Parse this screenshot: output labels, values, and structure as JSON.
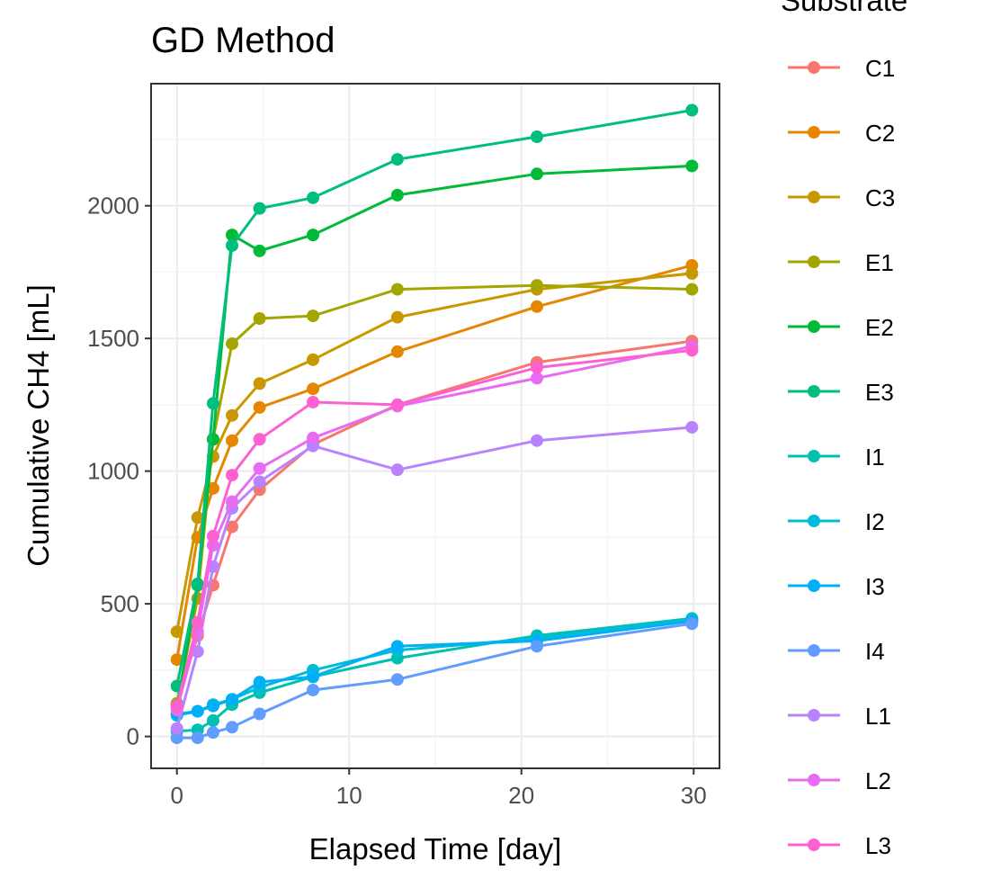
{
  "colors": {
    "panel_border": "#333333",
    "grid_major": "#ebebeb",
    "grid_minor": "#f5f5f5",
    "tick_text": "#4d4d4d"
  },
  "chart_data": {
    "type": "line",
    "title": "GD Method",
    "xlabel": "Elapsed Time [day]",
    "ylabel": "Cumulative CH4 [mL]",
    "xlim": [
      -1.5,
      31.5
    ],
    "ylim": [
      -120,
      2460
    ],
    "x_ticks": [
      0,
      10,
      20,
      30
    ],
    "y_ticks": [
      0,
      500,
      1000,
      1500,
      2000
    ],
    "grid": true,
    "markers": true,
    "legend": {
      "title": "Substrate",
      "position": "right"
    },
    "x": [
      0,
      1.2,
      2.1,
      3.2,
      4.8,
      7.9,
      12.8,
      20.9,
      29.9
    ],
    "series": [
      {
        "name": "C1",
        "color": "#F8766D",
        "values": [
          120,
          380,
          570,
          790,
          930,
          1100,
          1250,
          1410,
          1490
        ]
      },
      {
        "name": "C2",
        "color": "#E58700",
        "values": [
          290,
          750,
          935,
          1115,
          1240,
          1310,
          1450,
          1620,
          1775
        ]
      },
      {
        "name": "C3",
        "color": "#C99800",
        "values": [
          395,
          825,
          1055,
          1210,
          1330,
          1420,
          1580,
          1685,
          1745
        ]
      },
      {
        "name": "E1",
        "color": "#A3A500",
        "values": [
          125,
          520,
          1120,
          1480,
          1575,
          1585,
          1685,
          1700,
          1685
        ]
      },
      {
        "name": "E2",
        "color": "#00BA38",
        "values": [
          110,
          570,
          1120,
          1890,
          1830,
          1890,
          2040,
          2120,
          2150
        ]
      },
      {
        "name": "E3",
        "color": "#00BF7D",
        "values": [
          190,
          575,
          1255,
          1850,
          1990,
          2030,
          2175,
          2260,
          2360
        ]
      },
      {
        "name": "I1",
        "color": "#00C0AF",
        "values": [
          20,
          25,
          60,
          120,
          165,
          225,
          295,
          380,
          445
        ]
      },
      {
        "name": "I2",
        "color": "#00BCD8",
        "values": [
          85,
          95,
          120,
          140,
          185,
          250,
          325,
          370,
          440
        ]
      },
      {
        "name": "I3",
        "color": "#00B0F6",
        "values": [
          80,
          95,
          115,
          140,
          205,
          225,
          340,
          360,
          435
        ]
      },
      {
        "name": "I4",
        "color": "#619CFF",
        "values": [
          -5,
          -5,
          15,
          35,
          85,
          175,
          215,
          340,
          425
        ]
      },
      {
        "name": "L1",
        "color": "#B983FF",
        "values": [
          30,
          320,
          640,
          860,
          960,
          1095,
          1005,
          1115,
          1165
        ]
      },
      {
        "name": "L2",
        "color": "#E76BF3",
        "values": [
          100,
          395,
          720,
          885,
          1010,
          1125,
          1245,
          1350,
          1470
        ]
      },
      {
        "name": "L3",
        "color": "#FD61D1",
        "values": [
          115,
          430,
          755,
          985,
          1120,
          1260,
          1250,
          1390,
          1455
        ]
      }
    ]
  }
}
